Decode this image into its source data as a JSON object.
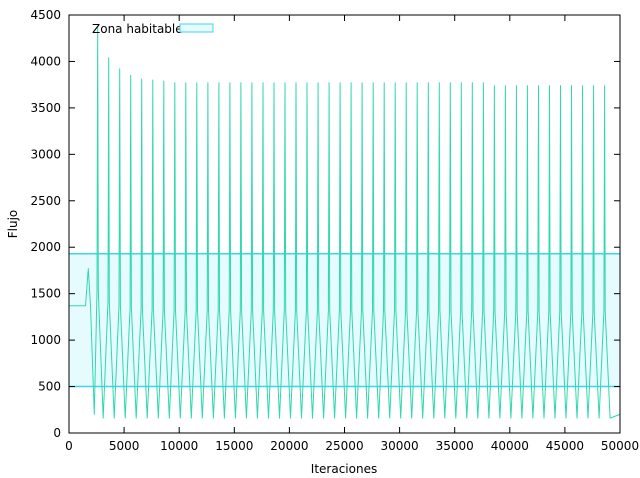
{
  "chart_data": {
    "type": "line",
    "title": "",
    "xlabel": "Iteraciones",
    "ylabel": "Flujo",
    "xlim": [
      0,
      50000
    ],
    "ylim": [
      0,
      4500
    ],
    "x_ticks": [
      0,
      5000,
      10000,
      15000,
      20000,
      25000,
      30000,
      35000,
      40000,
      45000,
      50000
    ],
    "y_ticks": [
      0,
      500,
      1000,
      1500,
      2000,
      2500,
      3000,
      3500,
      4000,
      4500
    ],
    "x_tick_labels": [
      "0",
      "5000",
      "10000",
      "15000",
      "20000",
      "25000",
      "30000",
      "35000",
      "40000",
      "45000",
      "50000"
    ],
    "y_tick_labels": [
      "0",
      "500",
      "1000",
      "1500",
      "2000",
      "2500",
      "3000",
      "3500",
      "4000",
      "4500"
    ],
    "grid": false,
    "legend_position": "top-left",
    "series": [
      {
        "name": "Zona habitable",
        "kind": "band",
        "lower": 500,
        "upper": 1930,
        "x_range": [
          0,
          50000
        ],
        "color": "#3fd4ea",
        "fill": "#e6fbfd"
      },
      {
        "kind": "oscillation",
        "color": "#2ed8b0",
        "initial_level": 1370,
        "initial_until": 1500,
        "first_bump_peak": 1770,
        "first_bump_x": 1750,
        "period": 1000,
        "trough": 160,
        "first_peak_x": 2600,
        "last_peak_x": 49200,
        "peaks_start": [
          4370,
          4040,
          3920,
          3850,
          3810,
          3800,
          3790
        ],
        "peak_steady": 3770,
        "peak_late": 3740,
        "late_from_x": 38000
      }
    ]
  }
}
